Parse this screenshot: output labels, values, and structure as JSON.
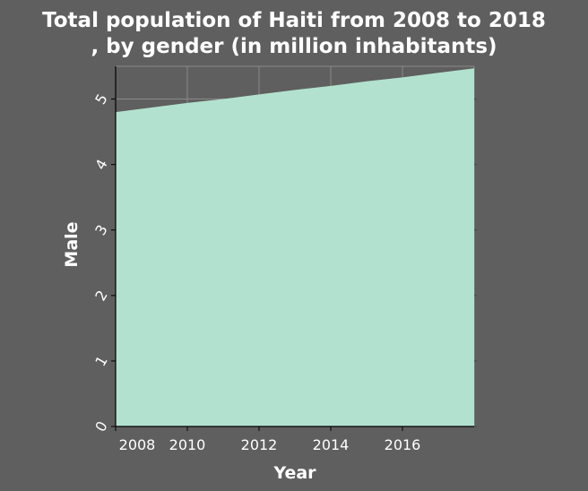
{
  "chart_data": {
    "type": "area",
    "title_line1": "Total population of Haiti from 2008 to 2018",
    "title_line2": ", by gender (in million inhabitants)",
    "xlabel": "Year",
    "ylabel": "Male",
    "x": [
      2008,
      2009,
      2010,
      2011,
      2012,
      2013,
      2014,
      2015,
      2016,
      2017,
      2018
    ],
    "series": [
      {
        "values": [
          4.8,
          4.87,
          4.94,
          5.0,
          5.07,
          5.14,
          5.2,
          5.27,
          5.33,
          5.4,
          5.47
        ]
      }
    ],
    "xlim": [
      2008,
      2018
    ],
    "ylim": [
      0,
      5.5
    ],
    "xticks": [
      2008,
      2010,
      2012,
      2014,
      2016
    ],
    "yticks": [
      0,
      1,
      2,
      3,
      4,
      5
    ],
    "grid": true,
    "colors": {
      "background": "#5f5f5f",
      "fill": "#b2e2cf",
      "grid": "#8a8a8a",
      "text": "#ffffff"
    }
  }
}
